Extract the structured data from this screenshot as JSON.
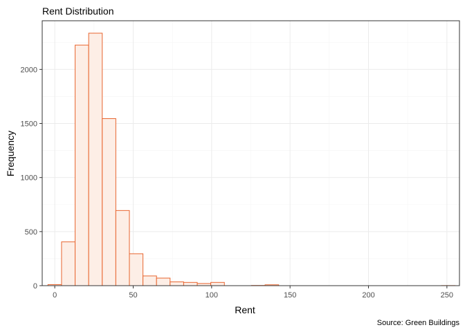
{
  "chart_data": {
    "type": "histogram",
    "title": "Rent Distribution",
    "xlabel": "Rent",
    "ylabel": "Frequency",
    "caption": "Source: Green Buildings",
    "xlim": [
      -8,
      258
    ],
    "ylim": [
      0,
      2450
    ],
    "x_ticks": [
      0,
      50,
      100,
      150,
      200,
      250
    ],
    "y_ticks": [
      0,
      500,
      1000,
      1500,
      2000
    ],
    "bin_width": 8.65,
    "bins": [
      {
        "start": -4.33,
        "count": 10
      },
      {
        "start": 4.33,
        "count": 405
      },
      {
        "start": 12.98,
        "count": 2225
      },
      {
        "start": 21.63,
        "count": 2335
      },
      {
        "start": 30.28,
        "count": 1545
      },
      {
        "start": 38.93,
        "count": 695
      },
      {
        "start": 47.58,
        "count": 295
      },
      {
        "start": 56.23,
        "count": 90
      },
      {
        "start": 64.88,
        "count": 70
      },
      {
        "start": 73.53,
        "count": 35
      },
      {
        "start": 82.18,
        "count": 30
      },
      {
        "start": 90.83,
        "count": 20
      },
      {
        "start": 99.48,
        "count": 30
      },
      {
        "start": 108.13,
        "count": 0
      },
      {
        "start": 116.78,
        "count": 0
      },
      {
        "start": 125.43,
        "count": 2
      },
      {
        "start": 134.08,
        "count": 8
      },
      {
        "start": 142.73,
        "count": 0
      },
      {
        "start": 151.38,
        "count": 0
      },
      {
        "start": 160.03,
        "count": 0
      },
      {
        "start": 168.68,
        "count": 0
      },
      {
        "start": 177.33,
        "count": 0
      },
      {
        "start": 185.98,
        "count": 0
      },
      {
        "start": 194.63,
        "count": 0
      },
      {
        "start": 203.28,
        "count": 0
      },
      {
        "start": 211.93,
        "count": 0
      },
      {
        "start": 220.58,
        "count": 0
      },
      {
        "start": 229.23,
        "count": 0
      },
      {
        "start": 237.88,
        "count": 0
      },
      {
        "start": 246.53,
        "count": 1
      }
    ],
    "grid": true,
    "colors": {
      "bar_fill": "#fdeee6",
      "bar_stroke": "#e8652f",
      "grid_major": "#ebebeb",
      "grid_minor": "#f5f5f5",
      "panel_border": "#333333"
    }
  }
}
